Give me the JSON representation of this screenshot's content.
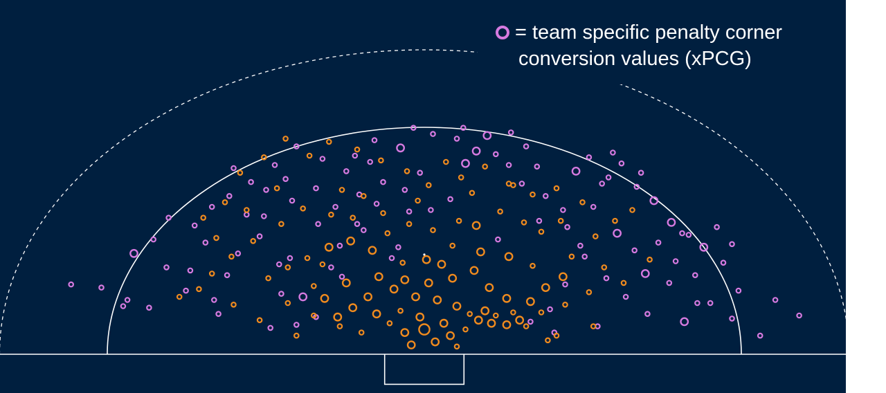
{
  "legend": {
    "line1": "= team specific penalty corner",
    "line2": "conversion values (xPCG)",
    "icon": "pink-hollow-circle"
  },
  "colors": {
    "background": "#001f3f",
    "lines": "#ffffff",
    "team_specific": "#d67ae0",
    "baseline": "#f08b1e"
  },
  "chart_data": {
    "type": "scatter",
    "title": "",
    "xlabel": "",
    "ylabel": "",
    "axes_visible": false,
    "x_unit": "metres from goal centre",
    "y_unit": "metres from backline",
    "xlim": [
      -20.8,
      20.8
    ],
    "ylim": [
      0,
      17.6
    ],
    "reference_lines": {
      "shooting_circle_radius": 14.63,
      "outer_dashed_arc_radius": 19.6,
      "goal_mouth_width": 3.66,
      "goal_depth": 1.4
    },
    "series": [
      {
        "name": "",
        "color": "#d67ae0",
        "points": [
          [
            -13.7,
            3.5
          ],
          [
            -12.7,
            3.0
          ],
          [
            -11.0,
            4.1
          ],
          [
            -10.8,
            5.4
          ],
          [
            -9.5,
            2.6
          ],
          [
            -9.1,
            5.1
          ],
          [
            -8.6,
            6.5
          ],
          [
            -7.6,
            7.6
          ],
          [
            -6.7,
            5.8
          ],
          [
            -6.6,
            3.9
          ],
          [
            -5.9,
            1.9
          ],
          [
            -5.6,
            3.7
          ],
          [
            -4.3,
            5.6
          ],
          [
            -3.9,
            7.0
          ],
          [
            -3.1,
            8.4
          ],
          [
            -2.2,
            9.7
          ],
          [
            -1.5,
            6.2
          ],
          [
            -0.7,
            9.2
          ],
          [
            -0.2,
            11.7
          ],
          [
            -1.1,
            13.3
          ],
          [
            -2.5,
            12.4
          ],
          [
            -3.6,
            11.8
          ],
          [
            -4.7,
            12.6
          ],
          [
            -5.9,
            13.4
          ],
          [
            -6.9,
            12.2
          ],
          [
            -8.0,
            11.1
          ],
          [
            -9.0,
            10.2
          ],
          [
            -9.8,
            9.5
          ],
          [
            -10.6,
            8.3
          ],
          [
            -11.8,
            8.8
          ],
          [
            -12.5,
            7.4
          ],
          [
            -13.4,
            6.5
          ],
          [
            -8.2,
            9.0
          ],
          [
            -7.3,
            10.6
          ],
          [
            -6.1,
            9.9
          ],
          [
            -5.0,
            10.7
          ],
          [
            -4.1,
            9.5
          ],
          [
            -3.0,
            10.3
          ],
          [
            -1.9,
            11.1
          ],
          [
            -0.9,
            10.6
          ],
          [
            0.3,
            9.3
          ],
          [
            1.2,
            10.0
          ],
          [
            1.9,
            12.3
          ],
          [
            2.4,
            13.1
          ],
          [
            2.9,
            14.1
          ],
          [
            3.3,
            12.9
          ],
          [
            1.5,
            13.9
          ],
          [
            0.4,
            14.2
          ],
          [
            -0.5,
            14.6
          ],
          [
            4.5,
            11.0
          ],
          [
            5.6,
            10.2
          ],
          [
            6.4,
            9.3
          ],
          [
            7.0,
            11.8
          ],
          [
            7.6,
            12.7
          ],
          [
            8.5,
            11.4
          ],
          [
            9.1,
            12.3
          ],
          [
            9.8,
            10.8
          ],
          [
            10.6,
            9.9
          ],
          [
            11.4,
            8.5
          ],
          [
            12.2,
            7.7
          ],
          [
            12.9,
            6.9
          ],
          [
            13.8,
            5.9
          ],
          [
            14.5,
            4.1
          ],
          [
            13.2,
            3.3
          ],
          [
            12.0,
            2.1
          ],
          [
            11.3,
            4.6
          ],
          [
            10.2,
            5.2
          ],
          [
            9.3,
            3.7
          ],
          [
            8.4,
            4.9
          ],
          [
            7.4,
            6.3
          ],
          [
            6.5,
            4.5
          ],
          [
            5.8,
            2.9
          ],
          [
            4.9,
            2.1
          ],
          [
            8.9,
            7.8
          ],
          [
            9.7,
            6.7
          ],
          [
            10.8,
            7.2
          ],
          [
            11.6,
            6.0
          ],
          [
            12.5,
            5.1
          ],
          [
            6.6,
            8.2
          ],
          [
            7.8,
            9.5
          ],
          [
            8.2,
            11.0
          ],
          [
            5.2,
            12.1
          ],
          [
            4.7,
            13.4
          ],
          [
            3.9,
            12.2
          ],
          [
            -2.8,
            8.0
          ],
          [
            -4.9,
            8.4
          ],
          [
            -7.4,
            8.9
          ],
          [
            -10.1,
            7.2
          ],
          [
            -11.9,
            5.6
          ],
          [
            -14.9,
            4.3
          ],
          [
            -16.3,
            4.5
          ],
          [
            -13.9,
            3.1
          ],
          [
            -9.7,
            3.5
          ],
          [
            -7.1,
            1.7
          ],
          [
            -5.0,
            2.4
          ],
          [
            6.0,
            1.4
          ],
          [
            8.0,
            1.8
          ],
          [
            10.3,
            2.6
          ],
          [
            12.6,
            3.3
          ],
          [
            14.2,
            2.3
          ],
          [
            -2.3,
            13.8
          ],
          [
            -3.2,
            12.8
          ],
          [
            4.0,
            14.3
          ],
          [
            1.8,
            14.6
          ],
          [
            -6.4,
            11.3
          ],
          [
            -8.8,
            12.0
          ],
          [
            10.0,
            11.7
          ],
          [
            8.7,
            13.0
          ],
          [
            16.2,
            3.5
          ],
          [
            17.3,
            2.5
          ],
          [
            15.5,
            1.2
          ],
          [
            -1.2,
            6.9
          ],
          [
            -3.8,
            5.0
          ],
          [
            -6.2,
            6.2
          ],
          [
            3.4,
            7.4
          ],
          [
            5.3,
            8.6
          ],
          [
            7.2,
            7.0
          ],
          [
            11.9,
            7.8
          ],
          [
            13.5,
            8.2
          ],
          [
            14.2,
            7.1
          ]
        ],
        "sizes": [
          1,
          1,
          1,
          1,
          1,
          1,
          1,
          1,
          1,
          1,
          1,
          2,
          1,
          1,
          1,
          1,
          1,
          1,
          1,
          2,
          1,
          1,
          1,
          1,
          1,
          1,
          1,
          1,
          1,
          1,
          1,
          2,
          1,
          1,
          1,
          1,
          1,
          1,
          1,
          1,
          1,
          1,
          2,
          2,
          2,
          1,
          1,
          1,
          1,
          1,
          1,
          1,
          2,
          1,
          1,
          1,
          1,
          2,
          2,
          1,
          2,
          1,
          1,
          1,
          2,
          1,
          2,
          1,
          1,
          1,
          1,
          1,
          1,
          2,
          1,
          1,
          1,
          1,
          1,
          1,
          1,
          1,
          1,
          1,
          1,
          1,
          1,
          1,
          1,
          1,
          1,
          1,
          1,
          1,
          1,
          1,
          1,
          1,
          1,
          1,
          1,
          1,
          1,
          1,
          1,
          1,
          1,
          1,
          1,
          1,
          1,
          1,
          1,
          1,
          1,
          1,
          1,
          1,
          1,
          1
        ]
      },
      {
        "name": "",
        "color": "#f08b1e",
        "points": [
          [
            -0.6,
            0.6
          ],
          [
            0.5,
            0.8
          ],
          [
            1.2,
            1.2
          ],
          [
            1.9,
            1.6
          ],
          [
            0.0,
            1.6
          ],
          [
            -0.9,
            1.4
          ],
          [
            -1.6,
            2.0
          ],
          [
            -2.2,
            2.6
          ],
          [
            -1.1,
            2.8
          ],
          [
            -0.2,
            2.4
          ],
          [
            0.9,
            2.0
          ],
          [
            2.5,
            2.2
          ],
          [
            3.1,
            2.0
          ],
          [
            3.8,
            1.9
          ],
          [
            4.4,
            2.2
          ],
          [
            2.8,
            2.8
          ],
          [
            1.5,
            3.1
          ],
          [
            0.6,
            3.5
          ],
          [
            -0.4,
            3.7
          ],
          [
            -1.4,
            4.2
          ],
          [
            -2.6,
            3.7
          ],
          [
            -3.3,
            3.0
          ],
          [
            -4.0,
            2.4
          ],
          [
            -4.6,
            3.6
          ],
          [
            -5.1,
            4.4
          ],
          [
            -3.6,
            4.6
          ],
          [
            -2.1,
            5.0
          ],
          [
            -0.9,
            4.8
          ],
          [
            0.2,
            4.6
          ],
          [
            1.3,
            4.9
          ],
          [
            2.3,
            5.4
          ],
          [
            3.0,
            4.3
          ],
          [
            3.8,
            3.6
          ],
          [
            4.9,
            3.4
          ],
          [
            5.6,
            4.3
          ],
          [
            6.4,
            5.0
          ],
          [
            5.0,
            5.7
          ],
          [
            3.9,
            6.3
          ],
          [
            2.6,
            6.6
          ],
          [
            1.3,
            7.0
          ],
          [
            0.1,
            6.1
          ],
          [
            -1.0,
            5.9
          ],
          [
            -2.4,
            6.7
          ],
          [
            -3.4,
            7.3
          ],
          [
            -4.4,
            6.9
          ],
          [
            -5.4,
            6.2
          ],
          [
            -6.3,
            5.6
          ],
          [
            -7.2,
            4.9
          ],
          [
            -6.6,
            8.4
          ],
          [
            -5.6,
            9.4
          ],
          [
            -4.3,
            9.0
          ],
          [
            -3.3,
            8.8
          ],
          [
            -1.9,
            9.1
          ],
          [
            -0.7,
            8.4
          ],
          [
            0.4,
            8.0
          ],
          [
            1.6,
            8.6
          ],
          [
            2.4,
            8.3
          ],
          [
            3.5,
            9.2
          ],
          [
            4.6,
            8.5
          ],
          [
            5.4,
            7.9
          ],
          [
            6.3,
            8.6
          ],
          [
            7.3,
            9.8
          ],
          [
            6.1,
            10.7
          ],
          [
            5.0,
            10.3
          ],
          [
            3.9,
            11.0
          ],
          [
            2.8,
            12.1
          ],
          [
            1.7,
            11.4
          ],
          [
            0.2,
            10.9
          ],
          [
            -0.8,
            11.8
          ],
          [
            -2.0,
            12.5
          ],
          [
            -3.1,
            13.2
          ],
          [
            -4.4,
            13.7
          ],
          [
            -5.3,
            12.8
          ],
          [
            -6.4,
            13.9
          ],
          [
            -7.4,
            12.7
          ],
          [
            -8.5,
            11.7
          ],
          [
            -9.2,
            9.8
          ],
          [
            -10.2,
            8.8
          ],
          [
            -7.9,
            7.3
          ],
          [
            -8.9,
            6.3
          ],
          [
            -9.8,
            5.2
          ],
          [
            -10.4,
            4.2
          ],
          [
            -11.3,
            3.7
          ],
          [
            -6.3,
            3.3
          ],
          [
            -5.1,
            2.5
          ],
          [
            -3.9,
            1.8
          ],
          [
            -2.9,
            1.4
          ],
          [
            -7.6,
            2.2
          ],
          [
            -8.8,
            3.2
          ],
          [
            -5.9,
            1.2
          ],
          [
            1.5,
            0.5
          ],
          [
            2.1,
            2.6
          ],
          [
            3.3,
            2.5
          ],
          [
            4.1,
            2.7
          ],
          [
            4.7,
            1.8
          ],
          [
            5.4,
            2.7
          ],
          [
            6.1,
            1.2
          ],
          [
            0.8,
            5.8
          ],
          [
            -1.7,
            7.8
          ],
          [
            -2.8,
            10.2
          ],
          [
            -0.3,
            9.9
          ],
          [
            1.0,
            12.4
          ],
          [
            2.2,
            10.4
          ],
          [
            6.8,
            6.3
          ],
          [
            7.9,
            7.6
          ],
          [
            8.8,
            8.6
          ],
          [
            9.6,
            9.3
          ],
          [
            10.4,
            6.1
          ],
          [
            8.3,
            5.6
          ],
          [
            9.2,
            4.6
          ],
          [
            7.6,
            4.0
          ],
          [
            6.5,
            3.2
          ],
          [
            7.8,
            1.8
          ],
          [
            5.7,
            0.9
          ],
          [
            -4.7,
            5.8
          ],
          [
            -3.8,
            10.6
          ],
          [
            -6.8,
            10.7
          ],
          [
            -8.2,
            9.3
          ],
          [
            -9.6,
            7.5
          ],
          [
            4.1,
            10.9
          ]
        ],
        "sizes": [
          2,
          2,
          2,
          1,
          3,
          2,
          1,
          2,
          1,
          2,
          2,
          2,
          2,
          2,
          2,
          2,
          2,
          2,
          2,
          2,
          2,
          2,
          2,
          2,
          1,
          2,
          2,
          2,
          2,
          2,
          2,
          2,
          2,
          2,
          2,
          2,
          1,
          2,
          2,
          1,
          2,
          1,
          2,
          2,
          2,
          1,
          1,
          1,
          1,
          1,
          1,
          1,
          1,
          1,
          1,
          1,
          2,
          1,
          1,
          1,
          1,
          1,
          1,
          1,
          1,
          1,
          1,
          1,
          1,
          1,
          1,
          1,
          1,
          1,
          1,
          1,
          1,
          1,
          1,
          1,
          1,
          1,
          1,
          1,
          1,
          1,
          1,
          1,
          1,
          1,
          1,
          1,
          1,
          1,
          1,
          1,
          1,
          2,
          1,
          1,
          1,
          1,
          1,
          1,
          1,
          1,
          1,
          1,
          1,
          1,
          1,
          1,
          1,
          1,
          1,
          1,
          1,
          1,
          1,
          1
        ]
      }
    ]
  }
}
